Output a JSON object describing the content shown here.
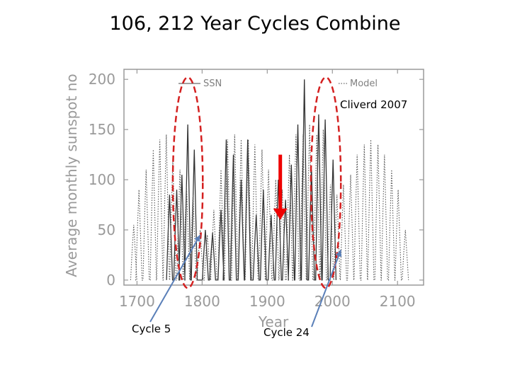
{
  "slide": {
    "title": "106, 212 Year Cycles Combine",
    "citation": "Cliverd 2007",
    "annotations": [
      "Cycle 5",
      "Cycle 24"
    ]
  },
  "colors": {
    "axis": "#9a9a9a",
    "ssn_line": "#333333",
    "model_line": "#555555",
    "ellipse": "#d42020",
    "arrow_red": "#ee0000",
    "arrow_blue": "#5a7fb8"
  },
  "chart_data": {
    "type": "line",
    "xlabel": "Year",
    "ylabel": "Average monthly sunspot no",
    "xlim": [
      1680,
      2140
    ],
    "ylim": [
      -5,
      210
    ],
    "xticks": [
      1700,
      1800,
      1900,
      2000,
      2100
    ],
    "yticks": [
      0,
      50,
      100,
      150,
      200
    ],
    "grid": false,
    "legend": [
      "SSN",
      "Model"
    ],
    "series": [
      {
        "name": "SSN",
        "style": "solid",
        "x": [
          1750,
          1761,
          1769,
          1778,
          1788,
          1805,
          1816,
          1829,
          1837,
          1848,
          1860,
          1870,
          1883,
          1894,
          1906,
          1917,
          1928,
          1937,
          1947,
          1957,
          1968,
          1979,
          1989,
          2001
        ],
        "y": [
          85,
          90,
          105,
          155,
          130,
          50,
          47,
          70,
          140,
          125,
          100,
          140,
          65,
          90,
          65,
          100,
          80,
          115,
          155,
          200,
          110,
          165,
          160,
          120
        ]
      },
      {
        "name": "Model",
        "style": "dotted",
        "x": [
          1695,
          1703,
          1714,
          1725,
          1735,
          1745,
          1755,
          1766,
          1776,
          1786,
          1797,
          1808,
          1818,
          1829,
          1839,
          1850,
          1860,
          1871,
          1881,
          1892,
          1902,
          1913,
          1923,
          1934,
          1944,
          1955,
          1965,
          1976,
          1986,
          1997,
          2007,
          2017,
          2028,
          2038,
          2049,
          2059,
          2070,
          2080,
          2091,
          2101,
          2112
        ],
        "y": [
          55,
          90,
          110,
          130,
          140,
          145,
          120,
          110,
          95,
          85,
          50,
          45,
          70,
          110,
          140,
          145,
          140,
          140,
          135,
          130,
          110,
          100,
          90,
          125,
          145,
          145,
          155,
          145,
          150,
          95,
          85,
          95,
          105,
          125,
          135,
          140,
          135,
          125,
          110,
          90,
          50
        ]
      }
    ],
    "highlight_ellipses": [
      {
        "x_center": 1778,
        "y_center": 97,
        "x_half": 23,
        "y_half": 105
      },
      {
        "x_center": 1990,
        "y_center": 97,
        "x_half": 23,
        "y_half": 105
      }
    ],
    "arrows": [
      {
        "label": "Cycle 5",
        "to": [
          1797,
          45
        ]
      },
      {
        "label": "Cycle 24",
        "to": [
          2013,
          30
        ]
      }
    ],
    "marker": {
      "x": 1920,
      "y_from": 125,
      "y_to": 60
    }
  }
}
